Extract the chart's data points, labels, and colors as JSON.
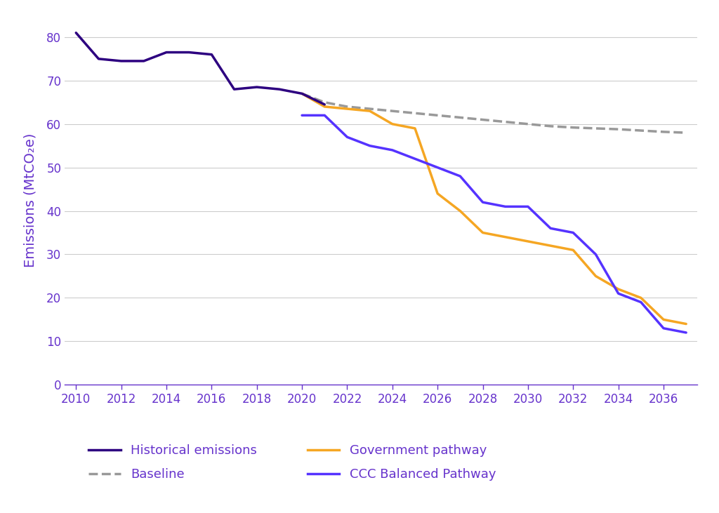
{
  "title": "",
  "ylabel": "Emissions (MtCO₂e)",
  "ylabel_color": "#6633cc",
  "background_color": "#ffffff",
  "xlim": [
    2009.5,
    2037.5
  ],
  "ylim": [
    0,
    85
  ],
  "yticks": [
    0,
    10,
    20,
    30,
    40,
    50,
    60,
    70,
    80
  ],
  "xticks": [
    2010,
    2012,
    2014,
    2016,
    2018,
    2020,
    2022,
    2024,
    2026,
    2028,
    2030,
    2032,
    2034,
    2036
  ],
  "tick_color": "#6633cc",
  "grid_color": "#cccccc",
  "historical": {
    "x": [
      2010,
      2011,
      2012,
      2013,
      2014,
      2015,
      2016,
      2017,
      2018,
      2019,
      2020,
      2021
    ],
    "y": [
      81,
      75,
      74.5,
      74.5,
      76.5,
      76.5,
      76,
      68,
      68.5,
      68,
      67,
      64.5
    ],
    "color": "#2d0080",
    "linewidth": 2.5,
    "label": "Historical emissions"
  },
  "baseline": {
    "x": [
      2020,
      2021,
      2022,
      2023,
      2024,
      2025,
      2026,
      2027,
      2028,
      2029,
      2030,
      2031,
      2032,
      2033,
      2034,
      2035,
      2036,
      2037
    ],
    "y": [
      67,
      65,
      64,
      63.5,
      63,
      62.5,
      62,
      61.5,
      61,
      60.5,
      60,
      59.5,
      59.2,
      59,
      58.8,
      58.5,
      58.2,
      58
    ],
    "color": "#999999",
    "linewidth": 2.5,
    "linestyle": "--",
    "label": "Baseline"
  },
  "government": {
    "x": [
      2020,
      2021,
      2022,
      2023,
      2024,
      2025,
      2026,
      2027,
      2028,
      2029,
      2030,
      2031,
      2032,
      2033,
      2034,
      2035,
      2036,
      2037
    ],
    "y": [
      67,
      64,
      63.5,
      63,
      60,
      59,
      44,
      40,
      35,
      34,
      33,
      32,
      31,
      25,
      22,
      20,
      15,
      14
    ],
    "color": "#f5a623",
    "linewidth": 2.5,
    "label": "Government pathway"
  },
  "ccc": {
    "x": [
      2020,
      2021,
      2022,
      2023,
      2024,
      2025,
      2026,
      2027,
      2028,
      2029,
      2030,
      2031,
      2032,
      2033,
      2034,
      2035,
      2036,
      2037
    ],
    "y": [
      62,
      62,
      57,
      55,
      54,
      52,
      50,
      48,
      42,
      41,
      41,
      36,
      35,
      30,
      21,
      19,
      13,
      12
    ],
    "color": "#5533ff",
    "linewidth": 2.5,
    "label": "CCC Balanced Pathway"
  },
  "legend": {
    "fontsize": 13,
    "text_color": "#6633cc",
    "items": [
      {
        "label": "Historical emissions",
        "color": "#2d0080",
        "linestyle": "-"
      },
      {
        "label": "Baseline",
        "color": "#999999",
        "linestyle": "--"
      },
      {
        "label": "Government pathway",
        "color": "#f5a623",
        "linestyle": "-"
      },
      {
        "label": "CCC Balanced Pathway",
        "color": "#5533ff",
        "linestyle": "-"
      }
    ]
  }
}
